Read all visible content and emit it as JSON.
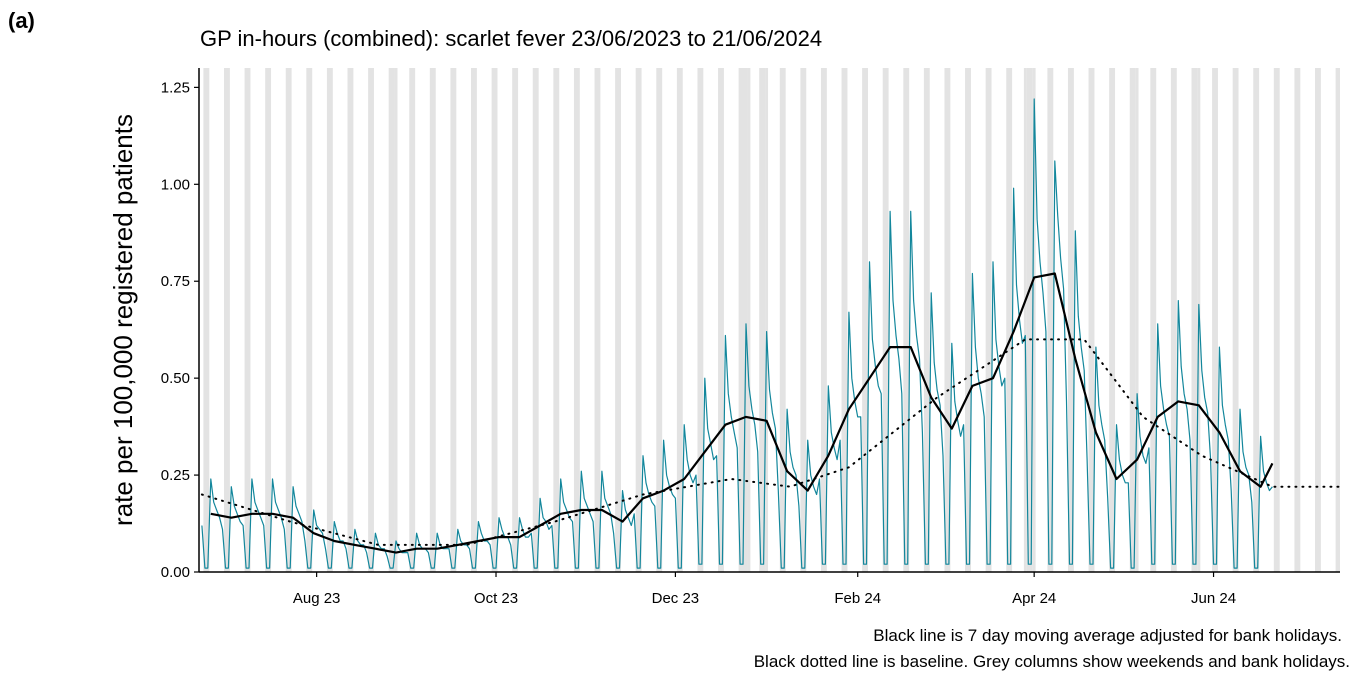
{
  "panel_label": "(a)",
  "chart_data": {
    "type": "line",
    "title": "GP in-hours (combined): scarlet fever 23/06/2023 to 21/06/2024",
    "y_label": "rate per 100,000 registered patients",
    "caption": [
      "Black line is 7 day moving average adjusted for bank holidays.",
      "Black dotted line is baseline. Grey columns show weekends and bank holidays."
    ],
    "xlim": [
      -1,
      387
    ],
    "xticks": [
      {
        "value": 39,
        "label": "Aug 23"
      },
      {
        "value": 100,
        "label": "Oct 23"
      },
      {
        "value": 161,
        "label": "Dec 23"
      },
      {
        "value": 223,
        "label": "Feb 24"
      },
      {
        "value": 283,
        "label": "Apr 24"
      },
      {
        "value": 344,
        "label": "Jun 24"
      }
    ],
    "ylim": [
      0,
      1.3
    ],
    "yticks": [
      {
        "value": 0,
        "label": "0.00"
      },
      {
        "value": 0.25,
        "label": "0.25"
      },
      {
        "value": 0.5,
        "label": "0.50"
      },
      {
        "value": 0.75,
        "label": "0.75"
      },
      {
        "value": 1,
        "label": "1.00"
      },
      {
        "value": 1.25,
        "label": "1.25"
      }
    ],
    "shade_color": "#e3e3e3",
    "weekends": [
      1,
      8,
      15,
      22,
      29,
      36,
      43,
      50,
      57,
      64,
      71,
      78,
      85,
      92,
      99,
      106,
      113,
      120,
      127,
      134,
      141,
      148,
      155,
      162,
      169,
      176,
      183,
      190,
      197,
      204,
      211,
      218,
      225,
      232,
      239,
      246,
      253,
      260,
      267,
      274,
      281,
      288,
      295,
      302,
      309,
      316,
      323,
      330,
      337,
      344,
      351,
      358,
      365,
      372,
      379,
      386
    ],
    "bank_holidays": [
      66,
      185,
      186,
      192,
      280,
      283,
      318,
      339
    ],
    "series": [
      {
        "color": "#13879c",
        "style": "solid",
        "width": 1.2,
        "x": [
          0,
          1,
          2,
          3,
          4,
          5,
          6,
          7,
          8,
          9,
          10,
          11,
          12,
          13,
          14,
          15,
          16,
          17,
          18,
          19,
          20,
          21,
          22,
          23,
          24,
          25,
          26,
          27,
          28,
          29,
          30,
          31,
          32,
          33,
          34,
          35,
          36,
          37,
          38,
          39,
          40,
          41,
          42,
          43,
          44,
          45,
          46,
          47,
          48,
          49,
          50,
          51,
          52,
          53,
          54,
          55,
          56,
          57,
          58,
          59,
          60,
          61,
          62,
          63,
          64,
          65,
          66,
          67,
          68,
          69,
          70,
          71,
          72,
          73,
          74,
          75,
          76,
          77,
          78,
          79,
          80,
          81,
          82,
          83,
          84,
          85,
          86,
          87,
          88,
          89,
          90,
          91,
          92,
          93,
          94,
          95,
          96,
          97,
          98,
          99,
          100,
          101,
          102,
          103,
          104,
          105,
          106,
          107,
          108,
          109,
          110,
          111,
          112,
          113,
          114,
          115,
          116,
          117,
          118,
          119,
          120,
          121,
          122,
          123,
          124,
          125,
          126,
          127,
          128,
          129,
          130,
          131,
          132,
          133,
          134,
          135,
          136,
          137,
          138,
          139,
          140,
          141,
          142,
          143,
          144,
          145,
          146,
          147,
          148,
          149,
          150,
          151,
          152,
          153,
          154,
          155,
          156,
          157,
          158,
          159,
          160,
          161,
          162,
          163,
          164,
          165,
          166,
          167,
          168,
          169,
          170,
          171,
          172,
          173,
          174,
          175,
          176,
          177,
          178,
          179,
          180,
          181,
          182,
          183,
          184,
          185,
          186,
          187,
          188,
          189,
          190,
          191,
          192,
          193,
          194,
          195,
          196,
          197,
          198,
          199,
          200,
          201,
          202,
          203,
          204,
          205,
          206,
          207,
          208,
          209,
          210,
          211,
          212,
          213,
          214,
          215,
          216,
          217,
          218,
          219,
          220,
          221,
          222,
          223,
          224,
          225,
          226,
          227,
          228,
          229,
          230,
          231,
          232,
          233,
          234,
          235,
          236,
          237,
          238,
          239,
          240,
          241,
          242,
          243,
          244,
          245,
          246,
          247,
          248,
          249,
          250,
          251,
          252,
          253,
          254,
          255,
          256,
          257,
          258,
          259,
          260,
          261,
          262,
          263,
          264,
          265,
          266,
          267,
          268,
          269,
          270,
          271,
          272,
          273,
          274,
          275,
          276,
          277,
          278,
          279,
          280,
          281,
          282,
          283,
          284,
          285,
          286,
          287,
          288,
          289,
          290,
          291,
          292,
          293,
          294,
          295,
          296,
          297,
          298,
          299,
          300,
          301,
          302,
          303,
          304,
          305,
          306,
          307,
          308,
          309,
          310,
          311,
          312,
          313,
          314,
          315,
          316,
          317,
          318,
          319,
          320,
          321,
          322,
          323,
          324,
          325,
          326,
          327,
          328,
          329,
          330,
          331,
          332,
          333,
          334,
          335,
          336,
          337,
          338,
          339,
          340,
          341,
          342,
          343,
          344,
          345,
          346,
          347,
          348,
          349,
          350,
          351,
          352,
          353,
          354,
          355,
          356,
          357,
          358,
          359,
          360,
          361,
          362,
          363,
          364
        ],
        "values": [
          0.12,
          0.01,
          0.01,
          0.24,
          0.18,
          0.16,
          0.14,
          0.11,
          0.01,
          0.01,
          0.22,
          0.17,
          0.15,
          0.13,
          0.12,
          0.01,
          0.01,
          0.24,
          0.18,
          0.16,
          0.14,
          0.12,
          0.01,
          0.01,
          0.24,
          0.18,
          0.16,
          0.14,
          0.11,
          0.01,
          0.01,
          0.22,
          0.17,
          0.15,
          0.13,
          0.08,
          0.01,
          0.01,
          0.16,
          0.12,
          0.11,
          0.1,
          0.06,
          0.01,
          0.01,
          0.13,
          0.1,
          0.08,
          0.08,
          0.06,
          0.01,
          0.01,
          0.11,
          0.08,
          0.07,
          0.07,
          0.05,
          0.01,
          0.01,
          0.1,
          0.07,
          0.06,
          0.06,
          0.04,
          0.01,
          0.01,
          0.08,
          0.06,
          0.05,
          0.05,
          0.05,
          0.01,
          0.01,
          0.1,
          0.07,
          0.06,
          0.06,
          0.05,
          0.01,
          0.01,
          0.1,
          0.07,
          0.06,
          0.06,
          0.06,
          0.01,
          0.01,
          0.11,
          0.08,
          0.07,
          0.07,
          0.06,
          0.01,
          0.01,
          0.13,
          0.1,
          0.08,
          0.08,
          0.07,
          0.01,
          0.01,
          0.14,
          0.11,
          0.09,
          0.09,
          0.07,
          0.01,
          0.01,
          0.14,
          0.11,
          0.09,
          0.09,
          0.1,
          0.01,
          0.01,
          0.19,
          0.14,
          0.13,
          0.11,
          0.12,
          0.01,
          0.01,
          0.24,
          0.18,
          0.16,
          0.14,
          0.13,
          0.01,
          0.01,
          0.26,
          0.19,
          0.17,
          0.15,
          0.13,
          0.01,
          0.01,
          0.26,
          0.19,
          0.17,
          0.15,
          0.1,
          0.01,
          0.01,
          0.21,
          0.16,
          0.14,
          0.12,
          0.15,
          0.01,
          0.01,
          0.3,
          0.23,
          0.2,
          0.18,
          0.17,
          0.01,
          0.01,
          0.34,
          0.25,
          0.22,
          0.2,
          0.19,
          0.01,
          0.01,
          0.38,
          0.29,
          0.25,
          0.23,
          0.25,
          0.02,
          0.02,
          0.5,
          0.37,
          0.33,
          0.29,
          0.3,
          0.02,
          0.02,
          0.61,
          0.46,
          0.4,
          0.36,
          0.32,
          0.02,
          0.02,
          0.64,
          0.48,
          0.42,
          0.38,
          0.31,
          0.02,
          0.02,
          0.62,
          0.47,
          0.41,
          0.37,
          0.21,
          0.01,
          0.01,
          0.42,
          0.31,
          0.27,
          0.25,
          0.17,
          0.01,
          0.01,
          0.34,
          0.25,
          0.22,
          0.2,
          0.24,
          0.02,
          0.02,
          0.48,
          0.36,
          0.32,
          0.29,
          0.34,
          0.02,
          0.02,
          0.67,
          0.5,
          0.44,
          0.4,
          0.4,
          0.02,
          0.02,
          0.8,
          0.6,
          0.53,
          0.48,
          0.46,
          0.02,
          0.02,
          0.93,
          0.7,
          0.61,
          0.55,
          0.46,
          0.02,
          0.02,
          0.93,
          0.7,
          0.61,
          0.55,
          0.36,
          0.02,
          0.02,
          0.72,
          0.54,
          0.47,
          0.43,
          0.3,
          0.02,
          0.02,
          0.59,
          0.44,
          0.39,
          0.35,
          0.38,
          0.02,
          0.02,
          0.77,
          0.58,
          0.5,
          0.46,
          0.4,
          0.02,
          0.02,
          0.8,
          0.6,
          0.53,
          0.48,
          0.5,
          0.02,
          0.02,
          0.99,
          0.74,
          0.65,
          0.59,
          0.61,
          0.02,
          0.02,
          1.22,
          0.91,
          0.8,
          0.72,
          0.62,
          0.02,
          0.02,
          1.06,
          0.92,
          0.81,
          0.73,
          0.44,
          0.02,
          0.02,
          0.88,
          0.66,
          0.58,
          0.52,
          0.29,
          0.02,
          0.02,
          0.58,
          0.43,
          0.38,
          0.34,
          0.19,
          0.01,
          0.01,
          0.38,
          0.29,
          0.25,
          0.23,
          0.23,
          0.01,
          0.01,
          0.46,
          0.35,
          0.3,
          0.28,
          0.32,
          0.02,
          0.02,
          0.64,
          0.48,
          0.42,
          0.38,
          0.35,
          0.02,
          0.02,
          0.7,
          0.53,
          0.46,
          0.42,
          0.34,
          0.02,
          0.02,
          0.69,
          0.52,
          0.45,
          0.41,
          0.29,
          0.02,
          0.02,
          0.58,
          0.43,
          0.38,
          0.34,
          0.21,
          0.01,
          0.01,
          0.42,
          0.31,
          0.27,
          0.25,
          0.18,
          0.01,
          0.01,
          0.35,
          0.26,
          0.23,
          0.21,
          0.22
        ]
      },
      {
        "color": "#000000",
        "style": "solid",
        "width": 2.2,
        "x": [
          3,
          10,
          17,
          24,
          31,
          38,
          45,
          52,
          59,
          66,
          73,
          80,
          87,
          94,
          101,
          108,
          115,
          122,
          129,
          136,
          143,
          150,
          157,
          164,
          171,
          178,
          185,
          192,
          199,
          206,
          213,
          220,
          227,
          234,
          241,
          248,
          255,
          262,
          269,
          276,
          283,
          290,
          297,
          304,
          311,
          318,
          325,
          332,
          339,
          346,
          353,
          360,
          364
        ],
        "values": [
          0.15,
          0.14,
          0.15,
          0.15,
          0.14,
          0.1,
          0.08,
          0.07,
          0.06,
          0.05,
          0.06,
          0.06,
          0.07,
          0.08,
          0.09,
          0.09,
          0.12,
          0.15,
          0.16,
          0.16,
          0.13,
          0.19,
          0.21,
          0.24,
          0.31,
          0.38,
          0.4,
          0.39,
          0.26,
          0.21,
          0.3,
          0.42,
          0.5,
          0.58,
          0.58,
          0.45,
          0.37,
          0.48,
          0.5,
          0.62,
          0.76,
          0.77,
          0.55,
          0.36,
          0.24,
          0.29,
          0.4,
          0.44,
          0.43,
          0.36,
          0.26,
          0.22,
          0.28
        ]
      },
      {
        "color": "#000000",
        "style": "dotted",
        "width": 2,
        "x": [
          0,
          30,
          60,
          90,
          120,
          150,
          180,
          200,
          220,
          250,
          280,
          300,
          320,
          340,
          364,
          387
        ],
        "values": [
          0.2,
          0.13,
          0.07,
          0.07,
          0.13,
          0.2,
          0.24,
          0.22,
          0.27,
          0.45,
          0.6,
          0.6,
          0.4,
          0.3,
          0.22,
          0.22
        ]
      }
    ]
  }
}
